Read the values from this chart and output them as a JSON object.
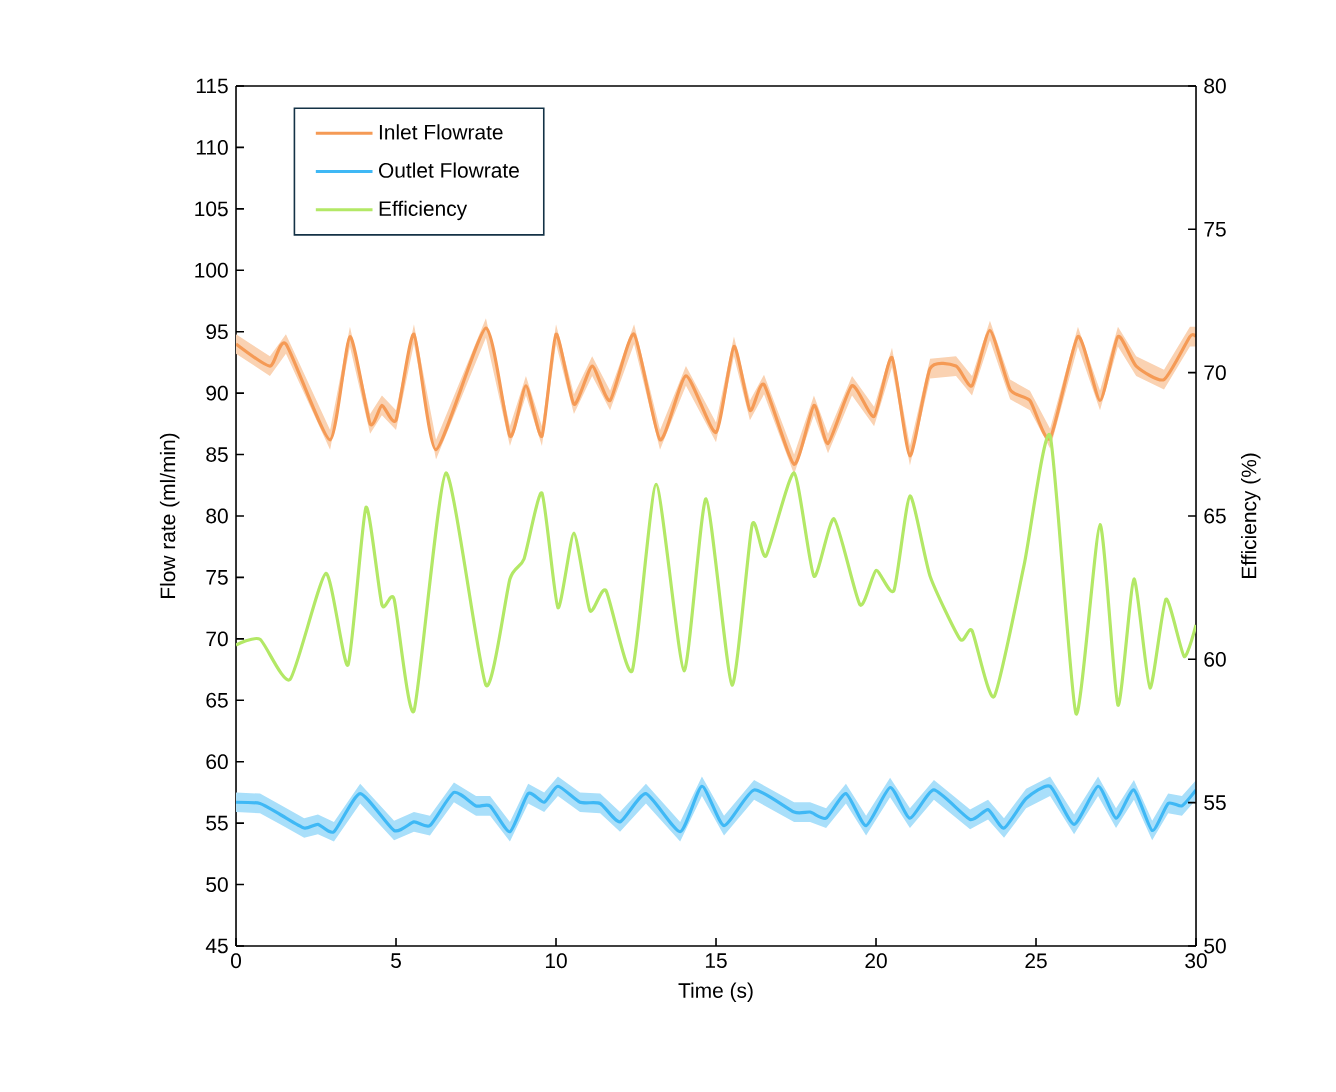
{
  "chart_data": {
    "type": "line",
    "xlabel": "Time (s)",
    "ylabel": "Flow rate (ml/min)",
    "y2label": "Efficiency (%)",
    "xlim": [
      0,
      30
    ],
    "xticks": [
      0,
      5,
      10,
      15,
      20,
      25,
      30
    ],
    "ylim": [
      45,
      115
    ],
    "yticks": [
      45,
      50,
      55,
      60,
      65,
      70,
      75,
      80,
      85,
      90,
      95,
      100,
      105,
      110,
      115
    ],
    "y2lim": [
      50,
      80
    ],
    "y2ticks": [
      50,
      55,
      60,
      65,
      70,
      75,
      80
    ],
    "legend": "top left",
    "grid": false,
    "marker": "none",
    "line_style": "solid",
    "series": [
      {
        "name": "Inlet Flowrate",
        "color": "#f59a55",
        "x": [
          0,
          1.06,
          1.56,
          2.94,
          3.56,
          4.19,
          4.56,
          5.0,
          5.56,
          6.25,
          7.81,
          8.56,
          9.06,
          9.56,
          10.0,
          10.56,
          11.13,
          11.69,
          12.44,
          13.25,
          14.06,
          15.0,
          15.56,
          16.06,
          16.5,
          17.44,
          18.06,
          18.5,
          19.25,
          19.94,
          20.5,
          21.06,
          21.69,
          22.5,
          23.0,
          23.56,
          24.19,
          24.81,
          25.44,
          26.31,
          27.0,
          27.56,
          28.13,
          29.0,
          29.81,
          30
        ],
        "values": [
          94.0,
          92.2,
          94.0,
          86.2,
          94.6,
          87.5,
          89.0,
          87.8,
          94.8,
          85.4,
          95.3,
          86.5,
          90.6,
          86.5,
          94.8,
          89.1,
          92.2,
          89.4,
          94.8,
          86.2,
          91.4,
          86.8,
          93.8,
          88.6,
          90.7,
          84.2,
          89.0,
          85.9,
          90.6,
          88.1,
          92.9,
          84.9,
          92.0,
          92.2,
          90.6,
          95.1,
          90.3,
          89.4,
          86.3,
          94.6,
          89.4,
          94.6,
          92.2,
          91.1,
          94.6,
          94.6
        ],
        "lower": [
          93.2,
          91.4,
          93.2,
          85.4,
          93.8,
          86.7,
          88.2,
          87.0,
          94.0,
          84.6,
          94.5,
          85.7,
          89.8,
          85.7,
          94.0,
          88.3,
          91.4,
          88.6,
          94.0,
          85.4,
          90.6,
          86.0,
          93.0,
          87.8,
          89.9,
          83.4,
          88.2,
          85.1,
          89.8,
          87.3,
          92.1,
          84.1,
          91.2,
          91.4,
          89.8,
          94.3,
          89.5,
          88.6,
          85.5,
          93.8,
          88.6,
          93.8,
          91.4,
          90.3,
          93.8,
          93.8
        ],
        "upper": [
          94.8,
          93.0,
          94.8,
          87.0,
          95.4,
          88.3,
          89.8,
          88.6,
          95.6,
          86.2,
          96.1,
          87.3,
          91.4,
          87.3,
          95.6,
          89.9,
          93.0,
          90.2,
          95.6,
          87.0,
          92.2,
          87.6,
          94.6,
          89.4,
          91.5,
          85.0,
          89.8,
          86.7,
          91.4,
          88.9,
          93.7,
          85.7,
          92.8,
          93.0,
          91.4,
          95.9,
          91.1,
          90.2,
          87.1,
          95.4,
          90.2,
          95.4,
          93.0,
          91.9,
          95.4,
          95.4
        ]
      },
      {
        "name": "Outlet Flowrate",
        "color": "#3fb8f5",
        "x": [
          0,
          0.75,
          1.38,
          2.13,
          2.56,
          3.06,
          3.88,
          4.94,
          5.56,
          6.06,
          6.81,
          7.5,
          7.94,
          8.56,
          9.13,
          9.63,
          10.06,
          10.75,
          11.38,
          12.0,
          12.81,
          13.88,
          14.56,
          15.25,
          16.19,
          17.44,
          17.94,
          18.44,
          19.06,
          19.69,
          20.44,
          21.06,
          21.81,
          22.94,
          23.5,
          24.0,
          24.69,
          25.44,
          26.19,
          26.94,
          27.5,
          28.06,
          28.63,
          29.13,
          29.56,
          30
        ],
        "values": [
          56.7,
          56.6,
          55.7,
          54.6,
          54.9,
          54.3,
          57.4,
          54.4,
          55.1,
          54.8,
          57.5,
          56.4,
          56.4,
          54.3,
          57.4,
          56.7,
          58.0,
          56.7,
          56.6,
          55.1,
          57.4,
          54.3,
          58.0,
          54.8,
          57.7,
          55.9,
          55.9,
          55.4,
          57.4,
          54.8,
          57.9,
          55.4,
          57.7,
          55.3,
          56.1,
          54.6,
          57.0,
          58.0,
          54.9,
          58.0,
          55.4,
          57.7,
          54.4,
          56.6,
          56.4,
          57.7
        ],
        "lower": [
          55.9,
          55.8,
          54.9,
          53.8,
          54.1,
          53.5,
          56.6,
          53.6,
          54.3,
          54.0,
          56.7,
          55.6,
          55.6,
          53.5,
          56.6,
          55.9,
          57.2,
          55.9,
          55.8,
          54.3,
          56.6,
          53.5,
          57.2,
          54.0,
          56.9,
          55.1,
          55.1,
          54.6,
          56.6,
          54.0,
          57.1,
          54.6,
          56.9,
          54.5,
          55.3,
          53.8,
          56.2,
          57.2,
          54.1,
          57.2,
          54.6,
          56.9,
          53.6,
          55.8,
          55.6,
          56.9
        ],
        "upper": [
          57.5,
          57.4,
          56.5,
          55.4,
          55.7,
          55.1,
          58.2,
          55.2,
          55.9,
          55.6,
          58.3,
          57.2,
          57.2,
          55.1,
          58.2,
          57.5,
          58.8,
          57.5,
          57.4,
          55.9,
          58.2,
          55.1,
          58.8,
          55.6,
          58.5,
          56.7,
          56.7,
          56.2,
          58.2,
          55.6,
          58.7,
          56.2,
          58.5,
          56.1,
          56.9,
          55.4,
          57.8,
          58.8,
          55.7,
          58.8,
          56.2,
          58.5,
          55.2,
          57.4,
          57.2,
          58.5
        ]
      },
      {
        "name": "Efficiency",
        "color": "#b3e866",
        "axis": "y2",
        "x": [
          0,
          0.75,
          1.69,
          2.81,
          3.5,
          4.06,
          4.56,
          4.94,
          5.56,
          6.56,
          7.81,
          8.56,
          9.0,
          9.56,
          10.06,
          10.56,
          11.06,
          11.56,
          12.38,
          13.13,
          14.0,
          14.69,
          15.5,
          16.13,
          16.56,
          17.44,
          18.06,
          18.69,
          19.5,
          20.0,
          20.56,
          21.06,
          21.69,
          22.63,
          23.0,
          23.69,
          24.63,
          25.44,
          26.25,
          27.0,
          27.56,
          28.06,
          28.56,
          29.06,
          29.63,
          30
        ],
        "values": [
          60.5,
          60.7,
          59.3,
          63.0,
          59.8,
          65.3,
          61.9,
          62.1,
          58.2,
          66.5,
          59.1,
          62.8,
          63.5,
          65.8,
          61.8,
          64.4,
          61.7,
          62.4,
          59.6,
          66.1,
          59.6,
          65.6,
          59.1,
          64.7,
          63.6,
          66.5,
          62.9,
          64.9,
          61.9,
          63.1,
          62.4,
          65.7,
          62.9,
          60.7,
          61.0,
          58.7,
          63.3,
          67.8,
          58.1,
          64.7,
          58.4,
          62.8,
          59.0,
          62.1,
          60.1,
          61.2
        ]
      }
    ]
  }
}
